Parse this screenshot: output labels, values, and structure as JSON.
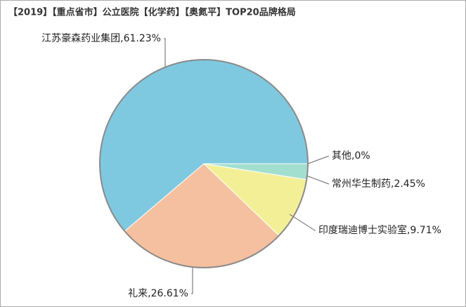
{
  "chart_data": {
    "type": "pie",
    "title": "【2019】【重点省市】公立医院【化学药】【奥氮平】TOP20品牌格局",
    "values": [
      0,
      2.45,
      9.71,
      26.61,
      61.23
    ],
    "value_labels": [
      "其他,0%",
      "常州华生制药,2.45%",
      "印度瑞迪博士实验室,9.71%",
      "礼来,26.61%",
      "江苏豪森药业集团,61.23%"
    ],
    "colors": [
      "#a8e0cf",
      "#a3dfcf",
      "#f3ef97",
      "#f5c09f",
      "#7ec9df"
    ]
  }
}
